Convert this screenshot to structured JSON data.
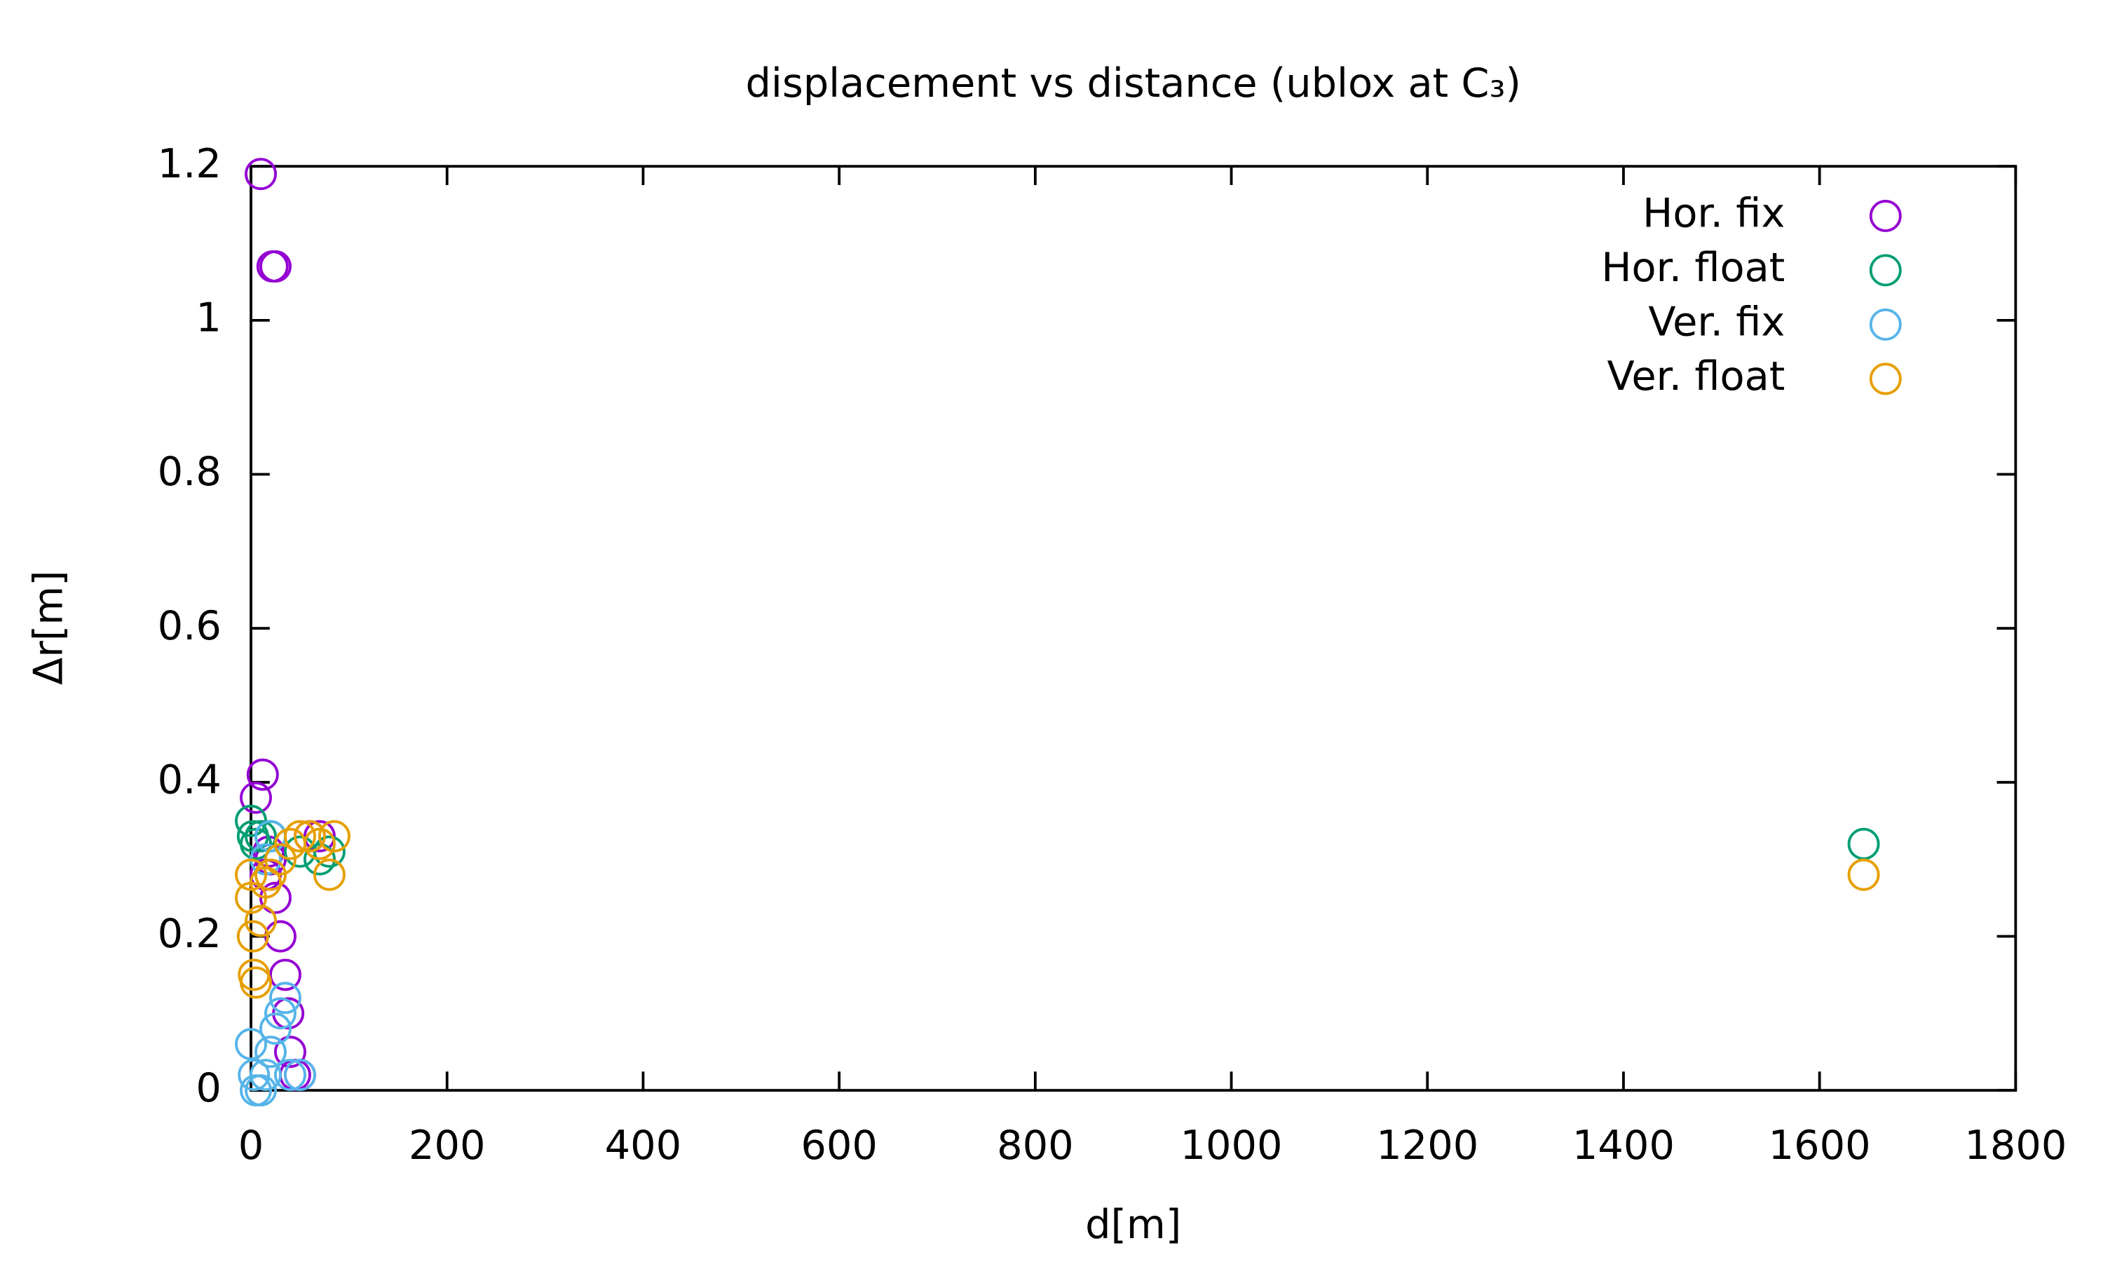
{
  "chart_data": {
    "type": "scatter",
    "title": "displacement vs distance (ublox at C₃)",
    "x_label": "d[m]",
    "y_label": "Δr[m]",
    "xlim": [
      0,
      1800
    ],
    "xticks": [
      0,
      200,
      400,
      600,
      800,
      1000,
      1200,
      1400,
      1600,
      1800
    ],
    "ylim": [
      0,
      1.2
    ],
    "yticks": [
      0,
      0.2,
      0.4,
      0.6,
      0.8,
      1,
      1.2
    ],
    "legend": "top-right",
    "series": [
      {
        "name": "Hor. fix",
        "color": "#9400d3",
        "x": [
          10,
          22,
          25,
          5,
          12,
          15,
          18,
          20,
          25,
          30,
          35,
          38,
          40,
          45,
          50,
          60,
          70
        ],
        "values": [
          1.19,
          1.07,
          1.07,
          0.38,
          0.41,
          0.28,
          0.31,
          0.3,
          0.25,
          0.2,
          0.15,
          0.1,
          0.05,
          0.02,
          0.02,
          0.33,
          0.33
        ]
      },
      {
        "name": "Hor. float",
        "color": "#009e73",
        "x": [
          0,
          2,
          5,
          10,
          20,
          50,
          70,
          80,
          1645
        ],
        "values": [
          0.35,
          0.33,
          0.32,
          0.33,
          0.33,
          0.31,
          0.3,
          0.31,
          0.32
        ]
      },
      {
        "name": "Ver. fix",
        "color": "#56b4e9",
        "x": [
          0,
          3,
          5,
          10,
          15,
          20,
          25,
          30,
          35,
          40,
          50,
          15,
          20
        ],
        "values": [
          0.06,
          0.02,
          0.0,
          0.0,
          0.02,
          0.05,
          0.08,
          0.1,
          0.12,
          0.02,
          0.02,
          0.3,
          0.33
        ]
      },
      {
        "name": "Ver. float",
        "color": "#e69f00",
        "x": [
          0,
          0,
          2,
          3,
          5,
          10,
          15,
          20,
          30,
          40,
          50,
          60,
          70,
          80,
          85,
          1645
        ],
        "values": [
          0.28,
          0.25,
          0.2,
          0.15,
          0.14,
          0.22,
          0.27,
          0.28,
          0.3,
          0.32,
          0.33,
          0.33,
          0.32,
          0.28,
          0.33,
          0.28
        ]
      }
    ]
  }
}
